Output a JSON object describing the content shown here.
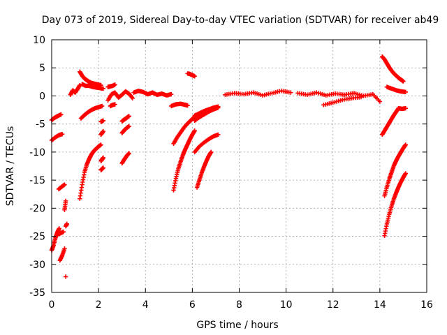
{
  "chart_data": {
    "type": "scatter",
    "title": "Day 073 of 2019, Sidereal Day-to-day VTEC variation (SDTVAR) for receiver ab49",
    "xlabel": "GPS time / hours",
    "ylabel": "SDTVAR / TECUs",
    "xlim": [
      0,
      16
    ],
    "ylim": [
      -35,
      10
    ],
    "xticks": [
      0,
      2,
      4,
      6,
      8,
      10,
      12,
      14,
      16
    ],
    "yticks": [
      -35,
      -30,
      -25,
      -20,
      -15,
      -10,
      -5,
      0,
      5,
      10
    ],
    "xtick_labels": [
      "0",
      "2",
      "4",
      "6",
      "8",
      "10",
      "12",
      "14",
      "16"
    ],
    "ytick_labels": [
      "-35",
      "-30",
      "-25",
      "-20",
      "-15",
      "-10",
      "-5",
      "0",
      "5",
      "10"
    ],
    "grid": true,
    "marker": "+",
    "color": "#ff0000",
    "series": [
      {
        "name": "SDTVAR",
        "segments": [
          {
            "x": [
              0.0,
              0.12,
              0.25,
              0.4
            ],
            "y": [
              -4.3,
              -3.9,
              -3.6,
              -3.3
            ]
          },
          {
            "x": [
              0.0,
              0.15,
              0.3,
              0.45
            ],
            "y": [
              -7.9,
              -7.4,
              -7.0,
              -6.8
            ]
          },
          {
            "x": [
              0.0,
              0.08,
              0.16,
              0.24,
              0.32
            ],
            "y": [
              -27.5,
              -26.6,
              -25.3,
              -24.3,
              -23.6
            ]
          },
          {
            "x": [
              0.3,
              0.4,
              0.5
            ],
            "y": [
              -24.6,
              -24.4,
              -24.2
            ]
          },
          {
            "x": [
              0.35,
              0.45,
              0.55
            ],
            "y": [
              -29.3,
              -28.4,
              -27.2
            ]
          },
          {
            "x": [
              0.3,
              0.42,
              0.55
            ],
            "y": [
              -16.6,
              -16.2,
              -15.8
            ]
          },
          {
            "x": [
              0.55,
              0.6
            ],
            "y": [
              -20.3,
              -18.7
            ]
          },
          {
            "x": [
              0.6,
              0.65
            ],
            "y": [
              -23.2,
              -22.8
            ]
          },
          {
            "x": [
              0.6
            ],
            "y": [
              -32.2
            ]
          },
          {
            "x": [
              0.8,
              0.9,
              1.0,
              1.1,
              1.2
            ],
            "y": [
              0.2,
              1.0,
              0.6,
              1.2,
              1.9
            ]
          },
          {
            "x": [
              1.2,
              1.3,
              1.4,
              1.5,
              1.6,
              1.7,
              1.8,
              1.9,
              2.0,
              2.1
            ],
            "y": [
              4.3,
              3.6,
              3.1,
              2.8,
              2.5,
              2.3,
              2.2,
              2.1,
              2.0,
              1.9
            ]
          },
          {
            "x": [
              1.3,
              1.45,
              1.6,
              1.75,
              1.9,
              2.05,
              2.2
            ],
            "y": [
              2.1,
              1.8,
              1.8,
              1.6,
              1.5,
              1.4,
              1.3
            ]
          },
          {
            "x": [
              1.25,
              1.4,
              1.55,
              1.7,
              1.85,
              2.0,
              2.15
            ],
            "y": [
              -4.0,
              -3.4,
              -2.9,
              -2.5,
              -2.2,
              -2.0,
              -1.8
            ]
          },
          {
            "x": [
              1.2,
              1.3,
              1.4,
              1.5,
              1.6,
              1.7,
              1.8,
              1.9,
              2.0,
              2.1
            ],
            "y": [
              -18.3,
              -15.8,
              -13.6,
              -12.2,
              -11.2,
              -10.4,
              -9.8,
              -9.4,
              -9.0,
              -8.7
            ]
          },
          {
            "x": [
              2.1,
              2.15,
              2.2
            ],
            "y": [
              -4.6,
              -4.5,
              -4.4
            ]
          },
          {
            "x": [
              2.1,
              2.15,
              2.2
            ],
            "y": [
              -6.9,
              -6.6,
              -6.3
            ]
          },
          {
            "x": [
              2.1,
              2.15,
              2.2
            ],
            "y": [
              -11.6,
              -11.3,
              -11.0
            ]
          },
          {
            "x": [
              2.1,
              2.15,
              2.2
            ],
            "y": [
              -13.2,
              -13.0,
              -12.8
            ]
          },
          {
            "x": [
              2.4,
              2.5,
              2.6,
              2.7
            ],
            "y": [
              1.6,
              1.7,
              1.8,
              2.0
            ]
          },
          {
            "x": [
              2.4,
              2.55,
              2.7,
              2.85,
              3.0,
              3.15,
              3.3,
              3.45
            ],
            "y": [
              -0.8,
              0.3,
              0.6,
              -0.3,
              0.2,
              0.8,
              0.4,
              -0.4
            ]
          },
          {
            "x": [
              2.5,
              2.6,
              2.7
            ],
            "y": [
              -1.8,
              -1.6,
              -1.5
            ]
          },
          {
            "x": [
              3.0,
              3.1,
              3.2,
              3.3
            ],
            "y": [
              -4.5,
              -4.2,
              -3.9,
              -3.6
            ]
          },
          {
            "x": [
              3.0,
              3.1,
              3.2,
              3.3
            ],
            "y": [
              -6.6,
              -6.1,
              -5.7,
              -5.4
            ]
          },
          {
            "x": [
              3.0,
              3.1,
              3.2,
              3.3
            ],
            "y": [
              -12.0,
              -11.3,
              -10.7,
              -10.2
            ]
          },
          {
            "x": [
              3.5,
              3.7,
              3.9,
              4.1,
              4.3,
              4.5,
              4.7,
              4.9,
              5.1
            ],
            "y": [
              0.6,
              0.9,
              0.7,
              0.3,
              0.6,
              0.2,
              0.4,
              0.1,
              0.3
            ]
          },
          {
            "x": [
              5.1,
              5.3,
              5.5,
              5.7,
              5.8
            ],
            "y": [
              -1.8,
              -1.5,
              -1.4,
              -1.6,
              -1.7
            ]
          },
          {
            "x": [
              5.2,
              5.3,
              5.4,
              5.5,
              5.6,
              5.7,
              5.8,
              5.9,
              6.0,
              6.1
            ],
            "y": [
              -16.8,
              -14.7,
              -13.0,
              -11.7,
              -10.5,
              -9.5,
              -8.6,
              -7.7,
              -6.9,
              -6.2
            ]
          },
          {
            "x": [
              5.2,
              5.35,
              5.5,
              5.65,
              5.8,
              5.95,
              6.1
            ],
            "y": [
              -8.5,
              -7.4,
              -6.5,
              -5.6,
              -4.9,
              -4.3,
              -3.7
            ]
          },
          {
            "x": [
              5.8,
              5.9,
              6.0,
              6.1
            ],
            "y": [
              4.0,
              3.9,
              3.7,
              3.5
            ]
          },
          {
            "x": [
              6.1,
              6.3,
              6.5,
              6.7,
              6.9,
              7.1
            ],
            "y": [
              -3.5,
              -3.1,
              -2.7,
              -2.4,
              -2.1,
              -1.9
            ]
          },
          {
            "x": [
              6.1,
              6.3,
              6.5,
              6.7,
              6.9,
              7.1
            ],
            "y": [
              -4.4,
              -3.8,
              -3.3,
              -2.8,
              -2.4,
              -2.1
            ]
          },
          {
            "x": [
              6.1,
              6.3,
              6.5,
              6.7,
              6.9,
              7.1
            ],
            "y": [
              -10.0,
              -9.0,
              -8.3,
              -7.7,
              -7.2,
              -6.9
            ]
          },
          {
            "x": [
              6.2,
              6.3,
              6.4,
              6.5,
              6.6,
              6.7,
              6.8
            ],
            "y": [
              -16.3,
              -15.0,
              -13.7,
              -12.6,
              -11.6,
              -10.7,
              -10.0
            ]
          },
          {
            "x": [
              7.4,
              7.8,
              8.2,
              8.6,
              9.0,
              9.4,
              9.8,
              10.2
            ],
            "y": [
              0.2,
              0.5,
              0.3,
              0.6,
              0.1,
              0.5,
              0.9,
              0.6
            ]
          },
          {
            "x": [
              10.5,
              10.9,
              11.3,
              11.7,
              12.1,
              12.5,
              12.9,
              13.3,
              13.7,
              14.0
            ],
            "y": [
              0.5,
              0.2,
              0.6,
              0.1,
              0.4,
              0.2,
              0.5,
              0.0,
              0.3,
              -1.0
            ]
          },
          {
            "x": [
              11.6,
              12.0,
              12.4,
              12.8,
              13.2
            ],
            "y": [
              -1.6,
              -1.2,
              -0.7,
              -0.4,
              -0.2
            ]
          },
          {
            "x": [
              14.1,
              14.2,
              14.3,
              14.4,
              14.5,
              14.6,
              14.7,
              14.8,
              14.9,
              15.0
            ],
            "y": [
              7.0,
              6.5,
              5.8,
              5.1,
              4.5,
              4.0,
              3.6,
              3.2,
              2.9,
              2.6
            ]
          },
          {
            "x": [
              14.3,
              14.5,
              14.7,
              14.9,
              15.1
            ],
            "y": [
              1.6,
              1.3,
              1.0,
              0.8,
              0.7
            ]
          },
          {
            "x": [
              14.1,
              14.2,
              14.3,
              14.4,
              14.5,
              14.6,
              14.7,
              14.8
            ],
            "y": [
              -6.9,
              -6.2,
              -5.5,
              -4.8,
              -4.1,
              -3.4,
              -2.8,
              -2.2
            ]
          },
          {
            "x": [
              14.8,
              14.95,
              15.1
            ],
            "y": [
              -2.2,
              -2.3,
              -2.2
            ]
          },
          {
            "x": [
              14.2,
              14.3,
              14.4,
              14.5,
              14.6,
              14.7,
              14.8,
              14.9,
              15.0,
              15.1
            ],
            "y": [
              -17.8,
              -16.2,
              -14.8,
              -13.6,
              -12.4,
              -11.5,
              -10.7,
              -10.0,
              -9.3,
              -8.7
            ]
          },
          {
            "x": [
              14.2,
              14.3,
              14.4,
              14.5,
              14.6,
              14.7,
              14.8,
              14.9,
              15.0,
              15.1
            ],
            "y": [
              -24.9,
              -22.8,
              -21.1,
              -19.6,
              -18.3,
              -17.2,
              -16.2,
              -15.3,
              -14.5,
              -13.8
            ]
          }
        ]
      }
    ]
  }
}
